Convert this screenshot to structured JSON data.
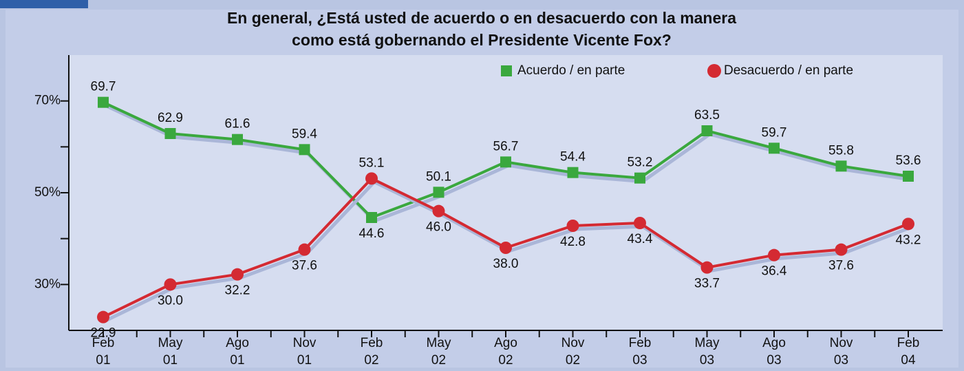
{
  "chart_data": {
    "type": "line",
    "title": "En general, ¿Está usted de acuerdo o en desacuerdo con la manera como está gobernando el Presidente Vicente Fox?",
    "categories": [
      "Feb 01",
      "May 01",
      "Ago 01",
      "Nov 01",
      "Feb 02",
      "May 02",
      "Ago 02",
      "Nov 02",
      "Feb 03",
      "May 03",
      "Ago 03",
      "Nov 03",
      "Feb 04"
    ],
    "series": [
      {
        "name": "Acuerdo / en parte",
        "color": "#3aa83e",
        "marker": "square",
        "values": [
          69.7,
          62.9,
          61.6,
          59.4,
          44.6,
          50.1,
          56.7,
          54.4,
          53.2,
          63.5,
          59.7,
          55.8,
          53.6
        ],
        "value_labels": [
          "69.7",
          "62.9",
          "61.6",
          "59.4",
          "44.6",
          "50.1",
          "56.7",
          "54.4",
          "53.2",
          "63.5",
          "59.7",
          "55.8",
          "53.6"
        ]
      },
      {
        "name": "Desacuerdo / en parte",
        "color": "#d42a32",
        "marker": "circle",
        "values": [
          22.9,
          30.0,
          32.2,
          37.6,
          53.1,
          46.0,
          38.0,
          42.8,
          43.4,
          33.7,
          36.4,
          37.6,
          43.2
        ],
        "value_labels": [
          "22.9",
          "30.0",
          "32.2",
          "37.6",
          "53.1",
          "46.0",
          "38.0",
          "42.8",
          "43.4",
          "33.7",
          "36.4",
          "37.6",
          "43.2"
        ]
      }
    ],
    "ylim": [
      20,
      80
    ],
    "yticks": [
      {
        "value": 30,
        "label": "30%"
      },
      {
        "value": 40,
        "label": null
      },
      {
        "value": 50,
        "label": "50%"
      },
      {
        "value": 60,
        "label": null
      },
      {
        "value": 70,
        "label": "70%"
      }
    ]
  }
}
